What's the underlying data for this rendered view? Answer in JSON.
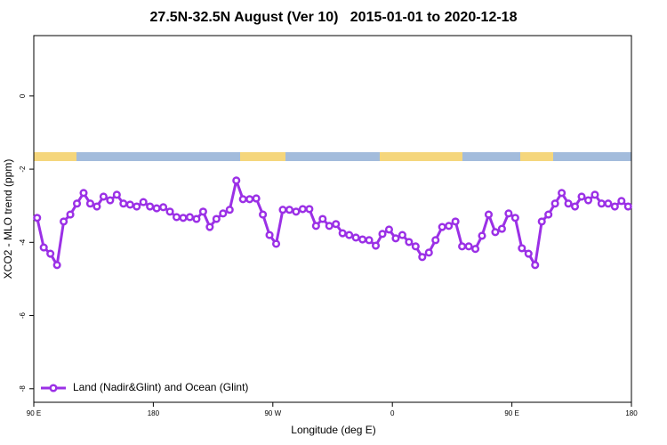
{
  "chart_data": {
    "type": "line",
    "title": "27.5N-32.5N August (Ver 10)   2015-01-01 to 2020-12-18",
    "x_label": "Longitude (deg E)",
    "y_label": "XCO2 - MLO trend (ppm)",
    "xlim": [
      90,
      540
    ],
    "ylim": [
      -8.37,
      1.65
    ],
    "xticks": [
      {
        "value": 90,
        "label": "90 E"
      },
      180,
      {
        "value": 270,
        "label": "90 W"
      },
      {
        "value": 360,
        "label": "0"
      },
      {
        "value": 450,
        "label": "90 E"
      },
      {
        "value": 540,
        "label": "180"
      }
    ],
    "yticks": [
      0,
      -2,
      -4,
      -6,
      -8
    ],
    "grid": false,
    "legend_position": "bottomleft",
    "x": [
      92.5,
      97.5,
      102.5,
      107.5,
      112.5,
      117.5,
      122.5,
      127.5,
      132.5,
      137.5,
      142.5,
      147.5,
      152.5,
      157.5,
      162.5,
      167.5,
      172.5,
      177.5,
      182.5,
      187.5,
      192.5,
      197.5,
      202.5,
      207.5,
      212.5,
      217.5,
      222.5,
      227.5,
      232.5,
      237.5,
      242.5,
      247.5,
      252.5,
      257.5,
      262.5,
      267.5,
      272.5,
      277.5,
      282.5,
      287.5,
      292.5,
      297.5,
      302.5,
      307.5,
      312.5,
      317.5,
      322.5,
      327.5,
      332.5,
      337.5,
      342.5,
      347.5,
      352.5,
      357.5,
      362.5,
      367.5,
      372.5,
      377.5,
      382.5,
      387.5,
      392.5,
      397.5,
      402.5,
      407.5,
      412.5,
      417.5,
      422.5,
      427.5,
      432.5,
      437.5,
      442.5,
      447.5,
      452.5,
      457.5,
      462.5,
      467.5,
      472.5,
      477.5,
      482.5,
      487.5,
      492.5,
      497.5,
      502.5,
      507.5,
      512.5,
      517.5,
      522.5,
      527.5,
      532.5,
      537.5
    ],
    "series": [
      {
        "name": "Land (Nadir&Glint) and Ocean (Glint)",
        "color": "#9b30e6",
        "values": [
          -3.33,
          -4.14,
          -4.31,
          -4.62,
          -3.43,
          -3.24,
          -2.94,
          -2.65,
          -2.94,
          -3.02,
          -2.75,
          -2.85,
          -2.7,
          -2.94,
          -2.97,
          -3.02,
          -2.9,
          -3.02,
          -3.07,
          -3.04,
          -3.16,
          -3.31,
          -3.33,
          -3.31,
          -3.36,
          -3.16,
          -3.58,
          -3.36,
          -3.21,
          -3.11,
          -2.31,
          -2.82,
          -2.82,
          -2.8,
          -3.24,
          -3.8,
          -4.04,
          -3.11,
          -3.11,
          -3.16,
          -3.09,
          -3.09,
          -3.55,
          -3.36,
          -3.55,
          -3.5,
          -3.75,
          -3.8,
          -3.87,
          -3.92,
          -3.94,
          -4.09,
          -3.77,
          -3.65,
          -3.89,
          -3.8,
          -3.99,
          -4.11,
          -4.4,
          -4.28,
          -3.94,
          -3.58,
          -3.55,
          -3.43,
          -4.11,
          -4.11,
          -4.18,
          -3.82,
          -3.24,
          -3.72,
          -3.63,
          -3.21,
          -3.33,
          -4.16,
          -4.31,
          -4.62,
          -3.43,
          -3.24,
          -2.94,
          -2.65,
          -2.94,
          -3.02,
          -2.75,
          -2.85,
          -2.7,
          -2.94,
          -2.94,
          -3.02,
          -2.87,
          -3.02
        ]
      }
    ]
  }
}
